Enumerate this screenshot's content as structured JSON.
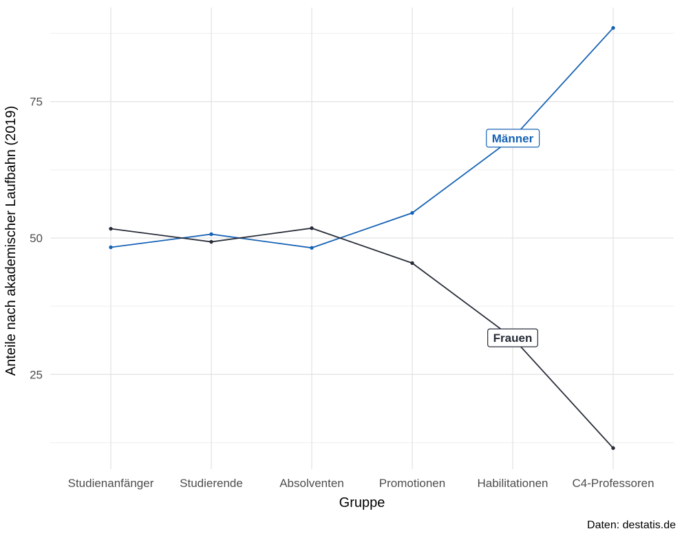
{
  "chart_data": {
    "type": "line",
    "title": "",
    "xlabel": "Gruppe",
    "ylabel": "Anteile nach akademischer Laufbahn (2019)",
    "caption": "Daten: destatis.de",
    "categories": [
      "Studienanfänger",
      "Studierende",
      "Absolventen",
      "Promotionen",
      "Habilitationen",
      "C4-Professoren"
    ],
    "series": [
      {
        "name": "Männer",
        "color": "#1562b4",
        "values": [
          48.3,
          50.7,
          48.2,
          54.6,
          68.3,
          88.5
        ]
      },
      {
        "name": "Frauen",
        "color": "#272c38",
        "values": [
          51.7,
          49.3,
          51.8,
          45.4,
          31.7,
          11.5
        ]
      }
    ],
    "y_ticks": [
      25,
      50,
      75
    ],
    "y_minor_ticks": [
      12.5,
      37.5,
      62.5,
      87.5
    ],
    "ylim": [
      7.6,
      92.4
    ],
    "grid": true,
    "legend_position": "inline-labels-on-line",
    "annotations": [
      {
        "text": "Männer",
        "series": "Männer",
        "category": "Habilitationen"
      },
      {
        "text": "Frauen",
        "series": "Frauen",
        "category": "Habilitationen"
      }
    ],
    "colors": {
      "background": "#ffffff",
      "grid_major": "#e3e3e3",
      "grid_minor": "#efefef",
      "tick_text": "#4d4d4d"
    }
  }
}
